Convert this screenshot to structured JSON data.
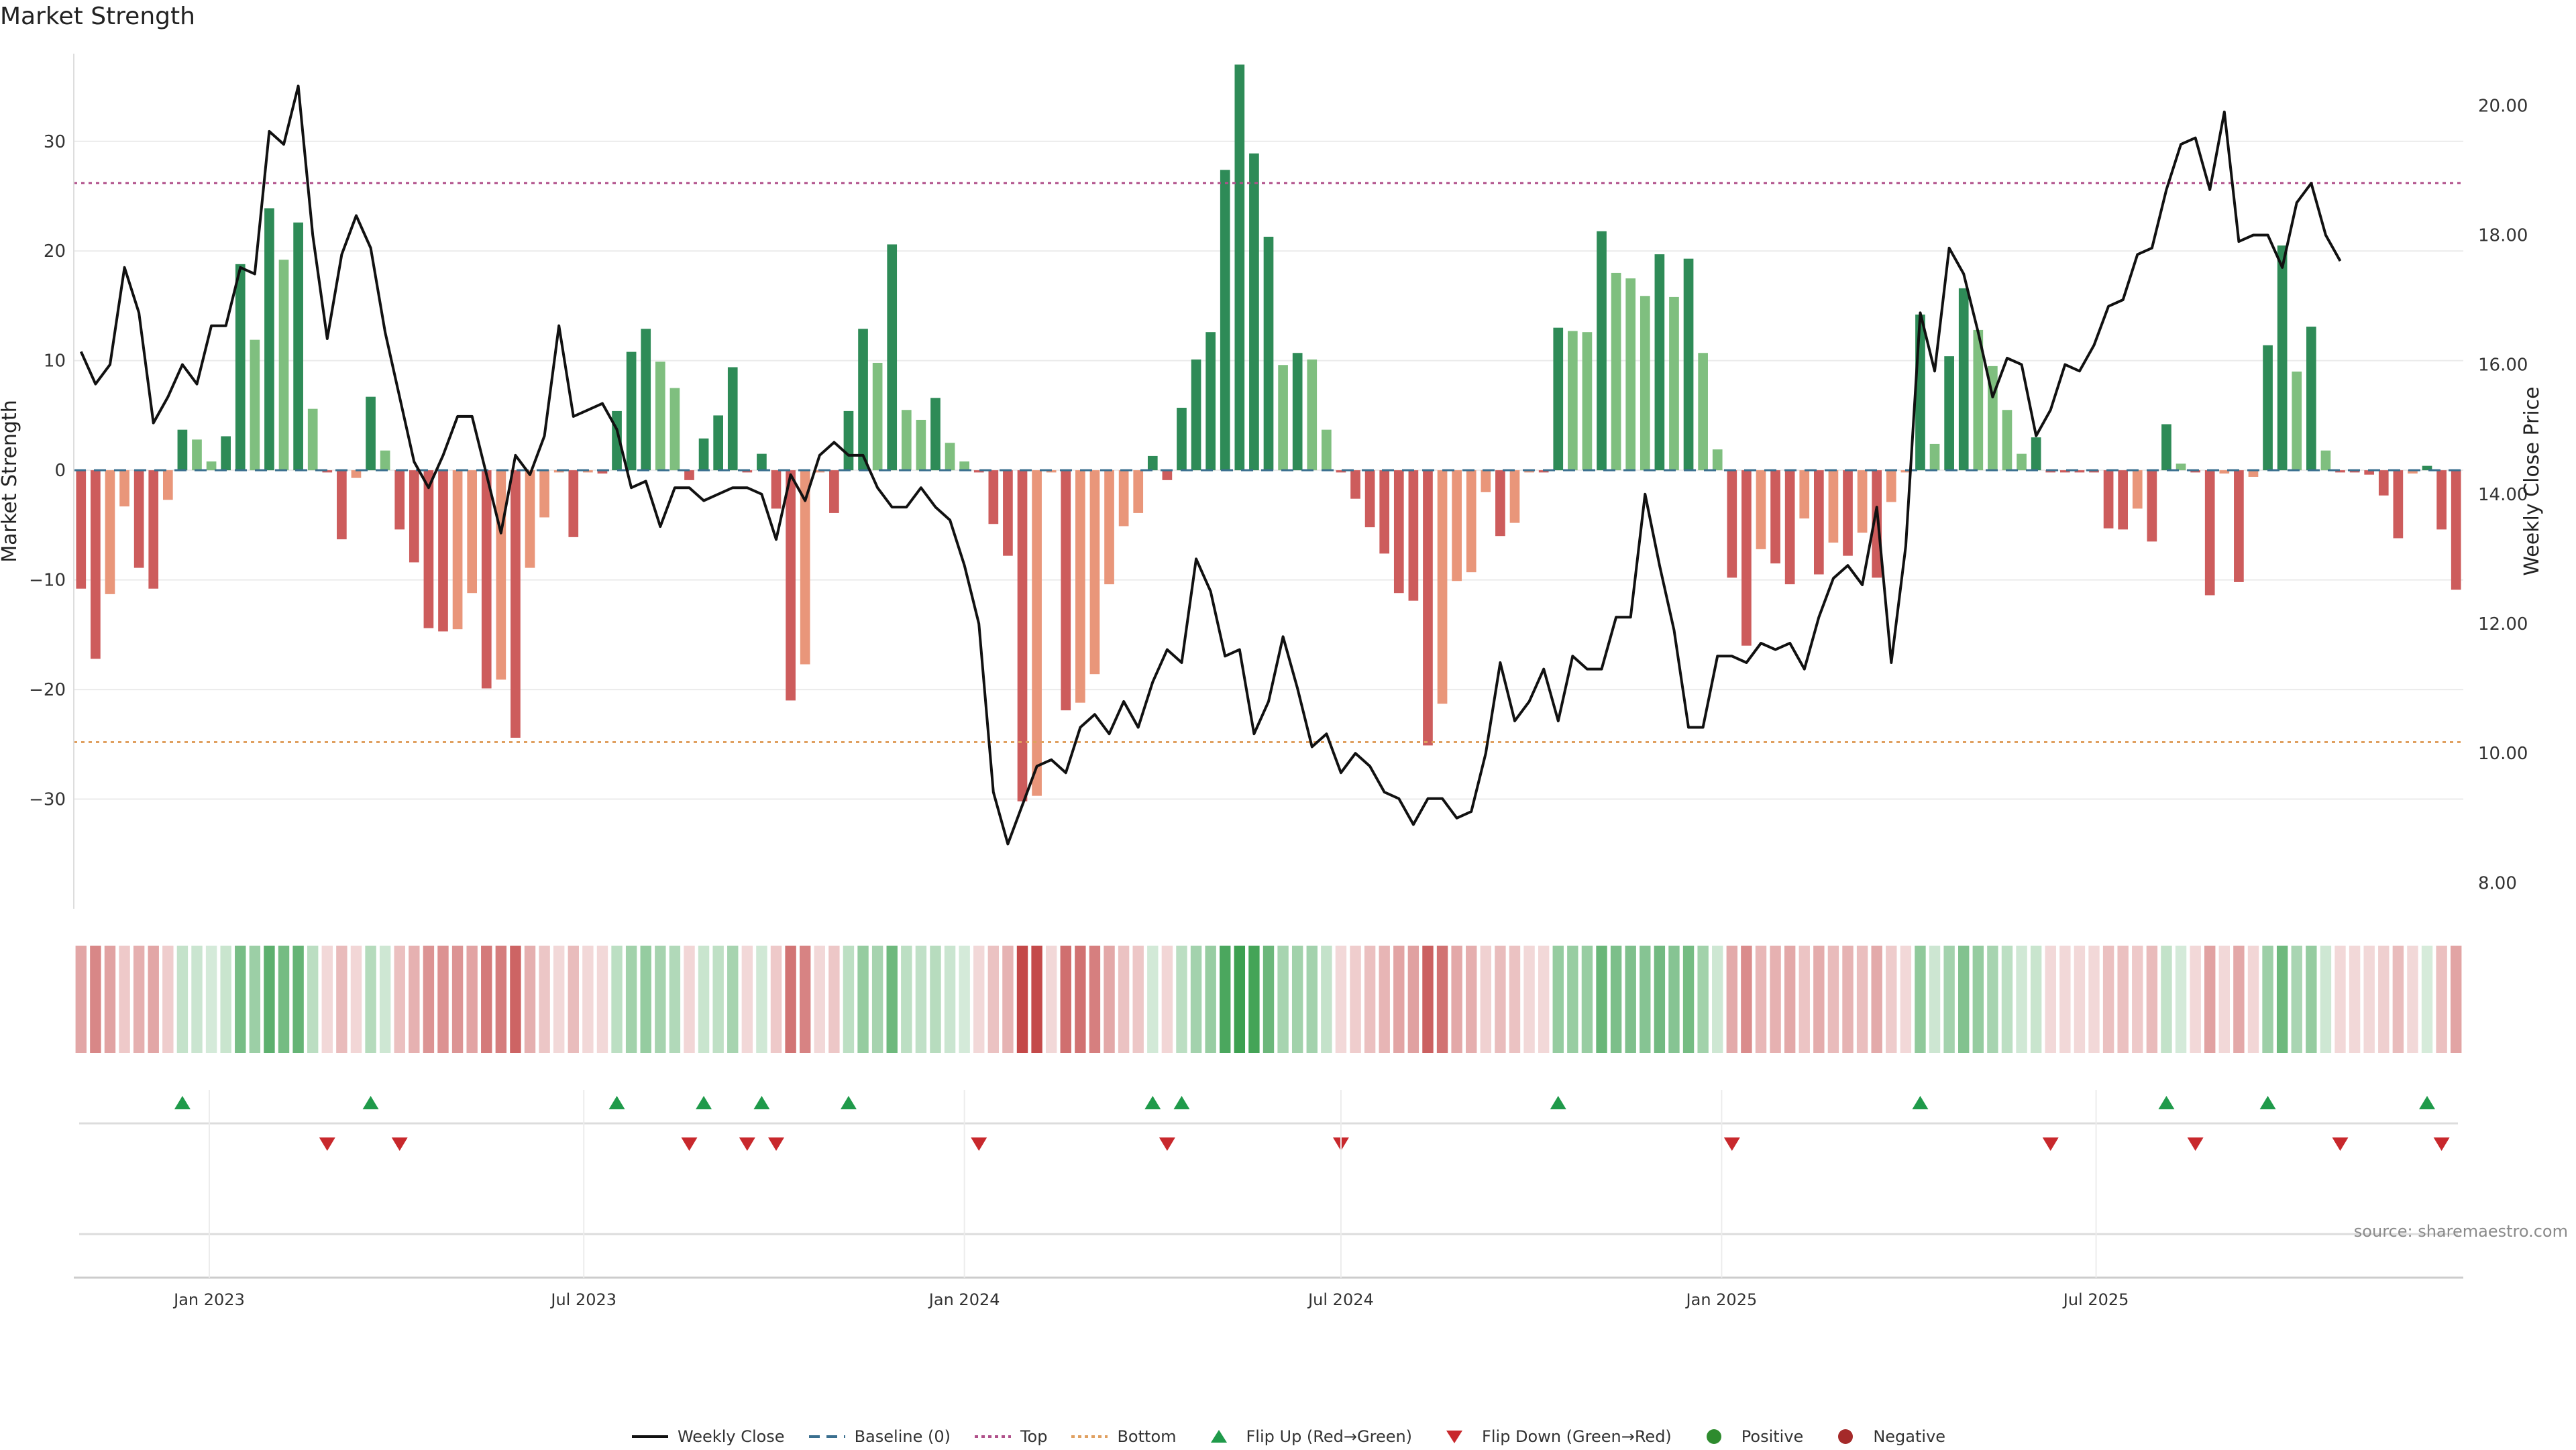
{
  "title": "Market Strength",
  "source": "source: sharemaestro.com",
  "colors": {
    "close": "#111111",
    "baseline": "#3a6f8f",
    "top": "#b0508a",
    "bottom": "#e0a060",
    "pos_dark": "#2e8b57",
    "pos_light": "#7fbf7f",
    "neg_dark": "#cd5c5c",
    "neg_light": "#e9967a",
    "flip_up": "#1f9a4a",
    "flip_down": "#c8282c",
    "positive": "#2e8b2e",
    "negative": "#a52a2a"
  },
  "legend": [
    {
      "key": "close",
      "label": "Weekly Close",
      "icon": "line-solid"
    },
    {
      "key": "baseline",
      "label": "Baseline (0)",
      "icon": "line-dashed"
    },
    {
      "key": "top",
      "label": "Top",
      "icon": "line-dotted"
    },
    {
      "key": "bottom",
      "label": "Bottom",
      "icon": "line-dotted"
    },
    {
      "key": "flip_up",
      "label": "Flip Up (Red→Green)",
      "icon": "triangle-up"
    },
    {
      "key": "flip_down",
      "label": "Flip Down (Green→Red)",
      "icon": "triangle-down"
    },
    {
      "key": "positive",
      "label": "Positive",
      "icon": "circle"
    },
    {
      "key": "negative",
      "label": "Negative",
      "icon": "circle"
    }
  ],
  "chart_data": {
    "type": "bar",
    "start_date": "2022-10-31",
    "ylabel_left": "Market Strength",
    "ylabel_right": "Weekly Close Price",
    "ylim_left": [
      -40,
      38
    ],
    "ylim_right": [
      7.6,
      20.8
    ],
    "yticks_left": [
      -30,
      -20,
      -10,
      0,
      10,
      20,
      30
    ],
    "yticks_right": [
      8.0,
      10.0,
      12.0,
      14.0,
      16.0,
      18.0,
      20.0
    ],
    "xticks": [
      {
        "label": "Jan 2023",
        "date": "2023-01-01"
      },
      {
        "label": "Jul 2023",
        "date": "2023-07-01"
      },
      {
        "label": "Jan 2024",
        "date": "2024-01-01"
      },
      {
        "label": "Jul 2024",
        "date": "2024-07-01"
      },
      {
        "label": "Jan 2025",
        "date": "2025-01-01"
      },
      {
        "label": "Jul 2025",
        "date": "2025-07-01"
      }
    ],
    "top_level": 26.2,
    "bottom_level": -24.8,
    "strength": [
      -10.8,
      -17.2,
      -11.3,
      -3.3,
      -8.9,
      -10.8,
      -2.7,
      3.7,
      2.8,
      0.8,
      3.1,
      18.8,
      11.9,
      23.9,
      19.2,
      22.6,
      5.6,
      -0.2,
      -6.3,
      -0.7,
      6.7,
      1.8,
      -5.4,
      -8.4,
      -14.4,
      -14.7,
      -14.5,
      -11.2,
      -19.9,
      -19.1,
      -24.4,
      -8.9,
      -4.3,
      -0.2,
      -6.1,
      -0.2,
      -0.3,
      5.4,
      10.8,
      12.9,
      9.9,
      7.5,
      -0.9,
      2.9,
      5.0,
      9.4,
      -0.2,
      1.5,
      -3.5,
      -21.0,
      -17.7,
      -0.2,
      -3.9,
      5.4,
      12.9,
      9.8,
      20.6,
      5.5,
      4.6,
      6.6,
      2.5,
      0.8,
      -0.2,
      -4.9,
      -7.8,
      -30.2,
      -29.7,
      -0.2,
      -21.9,
      -21.2,
      -18.6,
      -10.4,
      -5.1,
      -3.9,
      1.3,
      -0.9,
      5.7,
      10.1,
      12.6,
      27.4,
      37.0,
      28.9,
      21.3,
      9.6,
      10.7,
      10.1,
      3.7,
      -0.2,
      -2.6,
      -5.2,
      -7.6,
      -11.2,
      -11.9,
      -25.1,
      -21.3,
      -10.1,
      -9.3,
      -2.0,
      -6.0,
      -4.8,
      -0.2,
      -0.2,
      13.0,
      12.7,
      12.6,
      21.8,
      18.0,
      17.5,
      15.9,
      19.7,
      15.8,
      19.3,
      10.7,
      1.9,
      -9.8,
      -16.0,
      -7.2,
      -8.5,
      -10.4,
      -4.4,
      -9.5,
      -6.6,
      -7.8,
      -5.7,
      -9.8,
      -2.9,
      -0.2,
      14.2,
      2.4,
      10.4,
      16.6,
      12.8,
      9.5,
      5.5,
      1.5,
      3.0,
      -0.2,
      -0.2,
      -0.2,
      -0.2,
      -5.3,
      -5.4,
      -3.5,
      -6.5,
      4.2,
      0.6,
      -0.2,
      -11.4,
      -0.3,
      -10.2,
      -0.6,
      11.4,
      20.5,
      9.0,
      13.1,
      1.8,
      -0.2,
      -0.2,
      -0.4,
      -2.3,
      -6.2,
      -0.3,
      0.4,
      -5.4,
      -10.9
    ],
    "close": [
      16.2,
      15.7,
      16.0,
      17.5,
      16.8,
      15.1,
      15.5,
      16.0,
      15.7,
      16.6,
      16.6,
      17.5,
      17.4,
      19.6,
      19.4,
      20.3,
      18.0,
      16.4,
      17.7,
      18.3,
      17.8,
      16.5,
      15.5,
      14.5,
      14.1,
      14.6,
      15.2,
      15.2,
      14.3,
      13.4,
      14.6,
      14.3,
      14.9,
      16.6,
      15.2,
      15.3,
      15.4,
      15.0,
      14.1,
      14.2,
      13.5,
      14.1,
      14.1,
      13.9,
      14.0,
      14.1,
      14.1,
      14.0,
      13.3,
      14.3,
      13.9,
      14.6,
      14.8,
      14.6,
      14.6,
      14.1,
      13.8,
      13.8,
      14.1,
      13.8,
      13.6,
      12.9,
      12.0,
      9.4,
      8.6,
      9.2,
      9.8,
      9.9,
      9.7,
      10.4,
      10.6,
      10.3,
      10.8,
      10.4,
      11.1,
      11.6,
      11.4,
      13.0,
      12.5,
      11.5,
      11.6,
      10.3,
      10.8,
      11.8,
      11.0,
      10.1,
      10.3,
      9.7,
      10.0,
      9.8,
      9.4,
      9.3,
      8.9,
      9.3,
      9.3,
      9.0,
      9.1,
      10.0,
      11.4,
      10.5,
      10.8,
      11.3,
      10.5,
      11.5,
      11.3,
      11.3,
      12.1,
      12.1,
      14.0,
      12.9,
      11.9,
      10.4,
      10.4,
      11.5,
      11.5,
      11.4,
      11.7,
      11.6,
      11.7,
      11.3,
      12.1,
      12.7,
      12.9,
      12.6,
      13.8,
      11.4,
      13.2,
      16.8,
      15.9,
      17.8,
      17.4,
      16.5,
      15.5,
      16.1,
      16.0,
      14.9,
      15.3,
      16.0,
      15.9,
      16.3,
      16.9,
      17.0,
      17.7,
      17.8,
      18.7,
      19.4,
      19.5,
      18.7,
      19.9,
      17.9,
      18.0,
      18.0,
      17.5,
      18.5,
      18.8,
      18.0,
      17.6
    ]
  }
}
